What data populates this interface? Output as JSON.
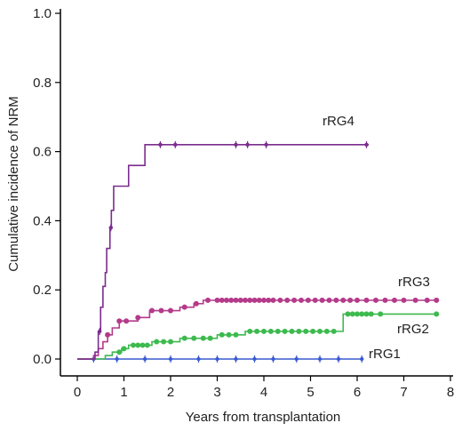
{
  "chart_data": {
    "type": "line",
    "subtype": "step",
    "title": "",
    "xlabel": "Years from transplantation",
    "ylabel": "Cumulative incidence of NRM",
    "xlim": [
      0,
      8
    ],
    "ylim": [
      0,
      1.0
    ],
    "xticks": [
      0,
      1,
      2,
      3,
      4,
      5,
      6,
      7,
      8
    ],
    "xtick_labels": [
      "0",
      "1",
      "2",
      "3",
      "4",
      "5",
      "6",
      "7",
      "8"
    ],
    "yticks": [
      0.0,
      0.2,
      0.4,
      0.6,
      0.8,
      1.0
    ],
    "ytick_labels": [
      "0.0",
      "0.2",
      "0.4",
      "0.6",
      "0.8",
      "1.0"
    ],
    "grid": false,
    "series": [
      {
        "name": "rRG4",
        "color": "#7b2d8e",
        "points": [
          [
            0.0,
            0.0
          ],
          [
            0.38,
            0.0
          ],
          [
            0.38,
            0.02
          ],
          [
            0.45,
            0.08
          ],
          [
            0.5,
            0.15
          ],
          [
            0.55,
            0.21
          ],
          [
            0.6,
            0.25
          ],
          [
            0.63,
            0.32
          ],
          [
            0.7,
            0.38
          ],
          [
            0.73,
            0.43
          ],
          [
            0.78,
            0.5
          ],
          [
            1.1,
            0.5
          ],
          [
            1.1,
            0.56
          ],
          [
            1.45,
            0.56
          ],
          [
            1.45,
            0.62
          ],
          [
            6.25,
            0.62
          ]
        ],
        "markers": [
          0.48,
          0.72,
          1.78,
          2.1,
          3.4,
          3.65,
          4.05,
          6.2
        ],
        "markers_style": "tick",
        "label": "rRG4"
      },
      {
        "name": "rRG3",
        "color": "#b43a8a",
        "points": [
          [
            0.0,
            0.0
          ],
          [
            0.3,
            0.0
          ],
          [
            0.35,
            0.01
          ],
          [
            0.45,
            0.03
          ],
          [
            0.55,
            0.05
          ],
          [
            0.65,
            0.07
          ],
          [
            0.75,
            0.09
          ],
          [
            0.9,
            0.11
          ],
          [
            1.2,
            0.11
          ],
          [
            1.3,
            0.12
          ],
          [
            1.55,
            0.14
          ],
          [
            2.05,
            0.14
          ],
          [
            2.2,
            0.15
          ],
          [
            2.5,
            0.16
          ],
          [
            2.7,
            0.17
          ],
          [
            7.75,
            0.17
          ]
        ],
        "markers": [
          0.65,
          0.9,
          1.05,
          1.3,
          1.6,
          1.8,
          2.0,
          2.3,
          2.55,
          2.8,
          3.0,
          3.1,
          3.2,
          3.3,
          3.4,
          3.5,
          3.6,
          3.7,
          3.8,
          3.9,
          4.0,
          4.1,
          4.2,
          4.35,
          4.5,
          4.65,
          4.8,
          4.95,
          5.1,
          5.25,
          5.4,
          5.55,
          5.7,
          5.85,
          6.0,
          6.2,
          6.4,
          6.6,
          6.8,
          7.0,
          7.25,
          7.5,
          7.7
        ],
        "markers_style": "dot",
        "label": "rRG3"
      },
      {
        "name": "rRG2",
        "color": "#3dba4e",
        "points": [
          [
            0.0,
            0.0
          ],
          [
            0.55,
            0.0
          ],
          [
            0.6,
            0.01
          ],
          [
            0.75,
            0.02
          ],
          [
            0.95,
            0.03
          ],
          [
            1.1,
            0.04
          ],
          [
            1.5,
            0.04
          ],
          [
            1.6,
            0.05
          ],
          [
            2.1,
            0.05
          ],
          [
            2.2,
            0.06
          ],
          [
            2.9,
            0.06
          ],
          [
            3.0,
            0.07
          ],
          [
            3.55,
            0.07
          ],
          [
            3.6,
            0.08
          ],
          [
            5.7,
            0.08
          ],
          [
            5.7,
            0.13
          ],
          [
            7.75,
            0.13
          ]
        ],
        "markers": [
          0.9,
          1.0,
          1.2,
          1.3,
          1.4,
          1.5,
          1.7,
          1.85,
          2.0,
          2.3,
          2.5,
          2.7,
          2.85,
          3.1,
          3.25,
          3.4,
          3.7,
          3.85,
          4.0,
          4.15,
          4.3,
          4.45,
          4.6,
          4.75,
          4.9,
          5.05,
          5.2,
          5.35,
          5.5,
          5.8,
          5.9,
          6.0,
          6.1,
          6.2,
          6.3,
          6.5,
          7.7
        ],
        "markers_style": "dot",
        "label": "rRG2"
      },
      {
        "name": "rRG1",
        "color": "#3a5bd0",
        "points": [
          [
            0.0,
            0.0
          ],
          [
            6.1,
            0.0
          ]
        ],
        "markers": [
          0.35,
          0.85,
          1.45,
          2.0,
          2.6,
          3.0,
          3.4,
          3.8,
          4.2,
          4.7,
          5.2,
          5.6,
          6.1
        ],
        "markers_style": "tick",
        "label": "rRG1"
      }
    ]
  }
}
